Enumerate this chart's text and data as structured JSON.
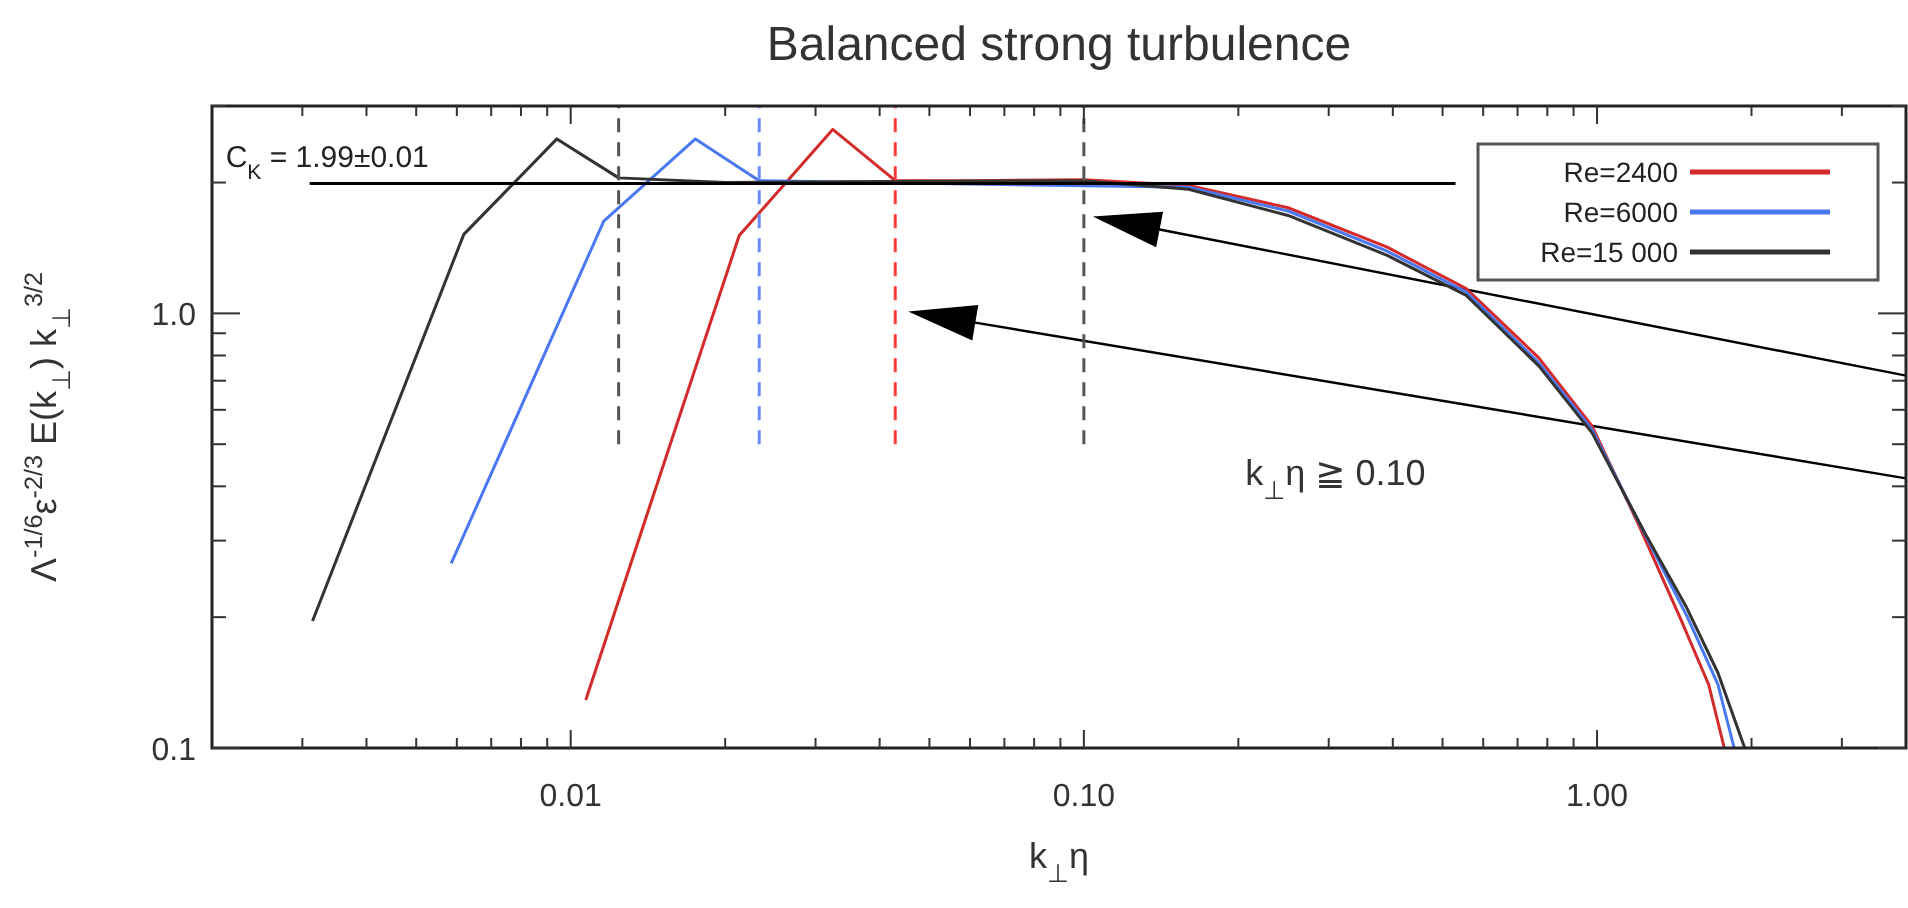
{
  "chart_data": {
    "type": "line",
    "title": "Balanced strong turbulence",
    "xlabel": "k$_{⊥}$η",
    "ylabel": "Λ$^{-1/6}$ε$^{-2/3}$ E(k$_{⊥}$) k$_{⊥}$$^{3/2}$",
    "log": "xy",
    "xlim": [
      0.002,
      4
    ],
    "ylim": [
      0.1,
      3
    ],
    "xticks": [
      {
        "value": 0.003,
        "label": null
      },
      {
        "value": 0.004,
        "label": null
      },
      {
        "value": 0.005,
        "label": null
      },
      {
        "value": 0.006,
        "label": null
      },
      {
        "value": 0.007,
        "label": null
      },
      {
        "value": 0.008,
        "label": null
      },
      {
        "value": 0.009,
        "label": null
      },
      0.01,
      {
        "value": 0.02,
        "label": null
      },
      {
        "value": 0.03,
        "label": null
      },
      {
        "value": 0.04,
        "label": null
      },
      {
        "value": 0.05,
        "label": null
      },
      {
        "value": 0.06,
        "label": null
      },
      {
        "value": 0.07,
        "label": null
      },
      {
        "value": 0.08,
        "label": null
      },
      {
        "value": 0.09,
        "label": null
      },
      {
        "value": 0.1,
        "label": "0.10"
      },
      {
        "value": 0.2,
        "label": null
      },
      {
        "value": 0.3,
        "label": null
      },
      {
        "value": 0.4,
        "label": null
      },
      {
        "value": 0.5,
        "label": null
      },
      {
        "value": 0.6,
        "label": null
      },
      {
        "value": 0.7,
        "label": null
      },
      {
        "value": 0.8,
        "label": null
      },
      {
        "value": 0.9,
        "label": null
      },
      {
        "value": 1,
        "label": "1.00"
      },
      {
        "value": 2,
        "label": null
      },
      {
        "value": 3,
        "label": null
      }
    ],
    "yticks": [
      0.1,
      {
        "value": 0.2,
        "label": null
      },
      {
        "value": 0.3,
        "label": null
      },
      {
        "value": 0.4,
        "label": null
      },
      {
        "value": 0.5,
        "label": null
      },
      {
        "value": 0.6,
        "label": null
      },
      {
        "value": 0.7,
        "label": null
      },
      {
        "value": 0.8,
        "label": null
      },
      {
        "value": 0.9,
        "label": null
      },
      {
        "value": 1,
        "label": "1.0"
      },
      {
        "value": 2,
        "label": null
      },
      {
        "value": 3,
        "label": null
      }
    ],
    "legend": "top right",
    "series": [
      {
        "name": "Re=2400",
        "color": "#d42a2a",
        "x": [
          0.0107,
          0.0213,
          0.0324,
          0.0429,
          0.06,
          0.1,
          0.16,
          0.25,
          0.39,
          0.556,
          0.77,
          0.978,
          1.2,
          1.45,
          1.65,
          1.77
        ],
        "values": [
          0.129,
          1.51,
          2.65,
          2.02,
          2.02,
          2.03,
          1.97,
          1.75,
          1.42,
          1.14,
          0.79,
          0.55,
          0.33,
          0.2,
          0.14,
          0.1
        ]
      },
      {
        "name": "Re=6000",
        "color": "#4a78f0",
        "x": [
          0.00585,
          0.0116,
          0.0175,
          0.0233,
          0.16,
          0.25,
          0.39,
          0.556,
          0.77,
          0.978,
          1.24,
          1.5,
          1.72,
          1.85
        ],
        "values": [
          0.266,
          1.63,
          2.52,
          2.02,
          1.95,
          1.72,
          1.39,
          1.12,
          0.77,
          0.54,
          0.31,
          0.2,
          0.14,
          0.1
        ]
      },
      {
        "name": "Re=15 000",
        "color": "#333333",
        "x": [
          0.00314,
          0.00619,
          0.0094,
          0.0124,
          0.02,
          0.04,
          0.1,
          0.16,
          0.25,
          0.39,
          0.556,
          0.77,
          0.978,
          1.24,
          1.49,
          1.72,
          1.94
        ],
        "values": [
          0.196,
          1.52,
          2.52,
          2.05,
          2.0,
          2.01,
          2.02,
          1.93,
          1.68,
          1.36,
          1.1,
          0.757,
          0.531,
          0.312,
          0.212,
          0.149,
          0.1
        ]
      },
      {
        "color": "#000000",
        "x": [
          0.0031,
          0.53
        ],
        "values": [
          1.99,
          1.99
        ]
      },
      {
        "color": "#555555",
        "line_style": "dashed",
        "x": [
          0.0124,
          0.0124
        ],
        "values": [
          0.5,
          3
        ]
      },
      {
        "color": "#6a8cff",
        "line_style": "dashed",
        "x": [
          0.0233,
          0.0233
        ],
        "values": [
          0.5,
          3
        ]
      },
      {
        "color": "#ff3b3b",
        "line_style": "dashed",
        "x": [
          0.0429,
          0.0429
        ],
        "values": [
          0.5,
          3
        ]
      },
      {
        "color": "#555555",
        "line_style": "dashed",
        "x": [
          0.1,
          0.1
        ],
        "values": [
          0.5,
          3
        ]
      }
    ],
    "annotations": [
      {
        "text": "C$_{K}$ = 1.99±0.01",
        "x": 0.0031,
        "y": 1.99
      },
      "k$_{⊥}$η  ≧ 0.10"
    ]
  }
}
